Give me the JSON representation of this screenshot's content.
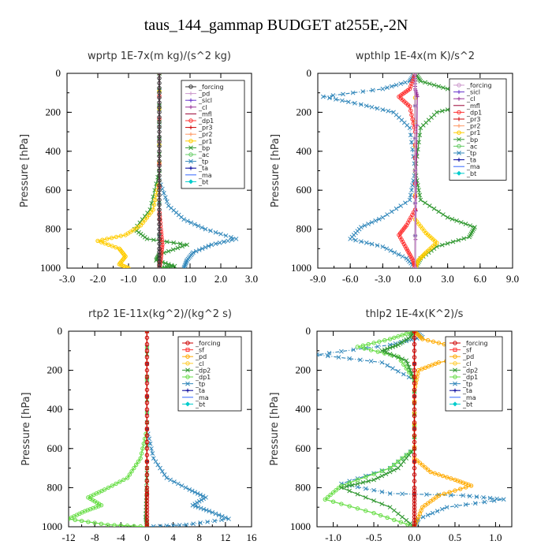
{
  "figure_title": "taus_144_gammap  BUDGET at255E,-2N",
  "chart_data": [
    {
      "type": "line",
      "title": "wprtp  1E-7x(m kg)/(s^2 kg)",
      "ylabel": "Pressure [hPa]",
      "xlim": [
        -3,
        3
      ],
      "ylim": [
        1000,
        0
      ],
      "xticks": [
        "-3.0",
        "-2.0",
        "-1.0",
        "0.0",
        "1.0",
        "2.0",
        "3.0"
      ],
      "yticks": [
        "0",
        "200",
        "400",
        "600",
        "800",
        "1000"
      ],
      "legend_position": "top-right",
      "series": [
        {
          "name": "_forcing",
          "color": "#333333",
          "marker": "o",
          "x": [
            0,
            0,
            0,
            0,
            0,
            0,
            0,
            0
          ],
          "y": [
            0,
            150,
            300,
            450,
            600,
            750,
            900,
            1000
          ]
        },
        {
          "name": "_pd",
          "color": "#cc99cc",
          "marker": "+",
          "x": [
            0,
            0
          ],
          "y": [
            0,
            1000
          ]
        },
        {
          "name": "_sicl",
          "color": "#6633cc",
          "marker": "+",
          "x": [
            0,
            0
          ],
          "y": [
            0,
            1000
          ]
        },
        {
          "name": "_cl",
          "color": "#993399",
          "marker": "+",
          "x": [
            0,
            0
          ],
          "y": [
            0,
            1000
          ]
        },
        {
          "name": "_mfl",
          "color": "#990033",
          "marker": "-",
          "x": [
            0,
            0
          ],
          "y": [
            0,
            1000
          ]
        },
        {
          "name": "_dp1",
          "color": "#ff3333",
          "marker": "o",
          "x": [
            0,
            0,
            0.05,
            0.1,
            0.05,
            0
          ],
          "y": [
            0,
            700,
            800,
            880,
            950,
            1000
          ]
        },
        {
          "name": "_pr3",
          "color": "#cc0000",
          "marker": "+",
          "x": [
            0,
            0
          ],
          "y": [
            0,
            1000
          ]
        },
        {
          "name": "_pr2",
          "color": "#ff9966",
          "marker": "+",
          "x": [
            0,
            0
          ],
          "y": [
            0,
            1000
          ]
        },
        {
          "name": "_pr1",
          "color": "#ffcc00",
          "marker": "o",
          "x": [
            0,
            0,
            -0.2,
            -0.6,
            -1.1,
            -2.0,
            -1.3,
            -1.1,
            -1.3,
            -1.0
          ],
          "y": [
            0,
            550,
            700,
            780,
            830,
            860,
            900,
            940,
            980,
            1000
          ]
        },
        {
          "name": "_bp",
          "color": "#339933",
          "marker": "x",
          "x": [
            0,
            0,
            -0.3,
            -0.8,
            -0.4,
            0.9,
            0.0,
            -0.1,
            0.5,
            0.0
          ],
          "y": [
            0,
            500,
            700,
            800,
            850,
            880,
            930,
            960,
            990,
            1000
          ]
        },
        {
          "name": "_ac",
          "color": "#66cc66",
          "marker": "o",
          "x": [
            0,
            0
          ],
          "y": [
            0,
            1000
          ]
        },
        {
          "name": "_tp",
          "color": "#3388bb",
          "marker": "x",
          "x": [
            0,
            0,
            0.3,
            0.8,
            1.5,
            2.5,
            1.7,
            1.1,
            0.9,
            0.8
          ],
          "y": [
            0,
            550,
            680,
            750,
            800,
            850,
            880,
            920,
            960,
            1000
          ]
        },
        {
          "name": "_ta",
          "color": "#000099",
          "marker": "+",
          "x": [
            0,
            0
          ],
          "y": [
            0,
            1000
          ]
        },
        {
          "name": "_ma",
          "color": "#3366ff",
          "marker": "-",
          "x": [
            0,
            0
          ],
          "y": [
            0,
            1000
          ]
        },
        {
          "name": "_bt",
          "color": "#00cccc",
          "marker": "diamond",
          "x": [
            0,
            0
          ],
          "y": [
            0,
            1000
          ]
        }
      ]
    },
    {
      "type": "line",
      "title": "wpthlp  1E-4x(m K)/s^2",
      "ylabel": "Pressure [hPa]",
      "xlim": [
        -9,
        9
      ],
      "ylim": [
        1000,
        0
      ],
      "xticks": [
        "-9.0",
        "-6.0",
        "-3.0",
        "0.0",
        "3.0",
        "6.0",
        "9.0"
      ],
      "yticks": [
        "0",
        "200",
        "400",
        "600",
        "800",
        "1000"
      ],
      "legend_position": "top-right",
      "series": [
        {
          "name": "_forcing",
          "color": "#cc99cc",
          "marker": "o",
          "x": [
            0,
            0
          ],
          "y": [
            0,
            1000
          ]
        },
        {
          "name": "_sicl",
          "color": "#6633cc",
          "marker": "+",
          "x": [
            0,
            0
          ],
          "y": [
            0,
            1000
          ]
        },
        {
          "name": "_cl",
          "color": "#993399",
          "marker": "+",
          "x": [
            0,
            0,
            0.2,
            0
          ],
          "y": [
            0,
            80,
            120,
            1000
          ]
        },
        {
          "name": "_mfl",
          "color": "#990033",
          "marker": "-",
          "x": [
            0,
            0
          ],
          "y": [
            0,
            1000
          ]
        },
        {
          "name": "_dp1",
          "color": "#ff3333",
          "marker": "o",
          "x": [
            0,
            -0.5,
            -1.5,
            -0.5,
            0,
            0,
            -0.8,
            -1.5,
            -0.8,
            -0.2,
            0
          ],
          "y": [
            0,
            80,
            120,
            170,
            300,
            700,
            780,
            830,
            900,
            960,
            1000
          ]
        },
        {
          "name": "_pr3",
          "color": "#cc0000",
          "marker": "+",
          "x": [
            0,
            0
          ],
          "y": [
            0,
            1000
          ]
        },
        {
          "name": "_pr2",
          "color": "#ff9966",
          "marker": "+",
          "x": [
            0,
            0
          ],
          "y": [
            0,
            1000
          ]
        },
        {
          "name": "_pr1",
          "color": "#ffcc00",
          "marker": "o",
          "x": [
            0,
            0,
            1.0,
            2.0,
            1.0,
            0.3,
            0
          ],
          "y": [
            0,
            750,
            820,
            870,
            920,
            960,
            1000
          ]
        },
        {
          "name": "_bp",
          "color": "#339933",
          "marker": "x",
          "x": [
            0,
            0.5,
            3.0,
            8.0,
            5.0,
            2.0,
            0.5,
            0,
            0.5,
            3.0,
            5.5,
            5.0,
            2.0,
            0.5,
            0
          ],
          "y": [
            0,
            40,
            80,
            120,
            160,
            200,
            280,
            500,
            650,
            740,
            790,
            840,
            890,
            950,
            1000
          ]
        },
        {
          "name": "_ac",
          "color": "#66cc66",
          "marker": "o",
          "x": [
            0,
            0
          ],
          "y": [
            0,
            1000
          ]
        },
        {
          "name": "_tp",
          "color": "#3388bb",
          "marker": "x",
          "x": [
            0,
            -0.5,
            -3.0,
            -8.5,
            -5.0,
            -2.0,
            -0.5,
            0,
            -0.5,
            -3.0,
            -5.0,
            -6.0,
            -3.0,
            -0.8,
            0
          ],
          "y": [
            0,
            40,
            80,
            120,
            160,
            200,
            280,
            500,
            650,
            740,
            790,
            850,
            890,
            950,
            1000
          ]
        },
        {
          "name": "_ta",
          "color": "#000099",
          "marker": "+",
          "x": [
            0,
            0
          ],
          "y": [
            0,
            1000
          ]
        },
        {
          "name": "_ma",
          "color": "#3366ff",
          "marker": "-",
          "x": [
            0,
            0
          ],
          "y": [
            0,
            1000
          ]
        },
        {
          "name": "_bt",
          "color": "#00cccc",
          "marker": "diamond",
          "x": [
            0,
            0
          ],
          "y": [
            0,
            1000
          ]
        }
      ]
    },
    {
      "type": "line",
      "title": "rtp2  1E-11x(kg^2)/(kg^2 s)",
      "ylabel": "Pressure [hPa]",
      "xlim": [
        -12,
        16
      ],
      "ylim": [
        1000,
        0
      ],
      "xticks": [
        "-12",
        "-8",
        "-4",
        "0",
        "4",
        "8",
        "12",
        "16"
      ],
      "yticks": [
        "0",
        "200",
        "400",
        "600",
        "800",
        "1000"
      ],
      "legend_position": "top-right",
      "series": [
        {
          "name": "_forcing",
          "color": "#cc0000",
          "marker": "o",
          "x": [
            0,
            0,
            0,
            0,
            0,
            0,
            0
          ],
          "y": [
            0,
            200,
            400,
            600,
            800,
            900,
            1000
          ]
        },
        {
          "name": "_sf",
          "color": "#ff3333",
          "marker": "square",
          "x": [
            0,
            0
          ],
          "y": [
            0,
            1000
          ]
        },
        {
          "name": "_pd",
          "color": "#ffaa00",
          "marker": "o",
          "x": [
            0,
            0
          ],
          "y": [
            0,
            1000
          ]
        },
        {
          "name": "_cl",
          "color": "#ffcc33",
          "marker": "o",
          "x": [
            0,
            0
          ],
          "y": [
            0,
            1000
          ]
        },
        {
          "name": "_dp2",
          "color": "#339933",
          "marker": "x",
          "x": [
            0,
            0,
            -0.1,
            -0.2,
            0
          ],
          "y": [
            0,
            700,
            850,
            950,
            1000
          ]
        },
        {
          "name": "_dp1",
          "color": "#66dd44",
          "marker": "o",
          "x": [
            0,
            0,
            -1.0,
            -3.0,
            -6.5,
            -9.0,
            -7.0,
            -9.5,
            -12.0,
            -6.0,
            0
          ],
          "y": [
            0,
            500,
            650,
            750,
            810,
            850,
            890,
            920,
            960,
            990,
            1000
          ]
        },
        {
          "name": "_tp",
          "color": "#3388bb",
          "marker": "x",
          "x": [
            0,
            0,
            1.0,
            3.0,
            6.5,
            9.0,
            7.0,
            9.5,
            12.5,
            6.0,
            0
          ],
          "y": [
            0,
            500,
            650,
            750,
            810,
            850,
            890,
            920,
            960,
            990,
            1000
          ]
        },
        {
          "name": "_ta",
          "color": "#000099",
          "marker": "+",
          "x": [
            0,
            0
          ],
          "y": [
            0,
            1000
          ]
        },
        {
          "name": "_ma",
          "color": "#3366ff",
          "marker": "-",
          "x": [
            0,
            0
          ],
          "y": [
            0,
            1000
          ]
        },
        {
          "name": "_bt",
          "color": "#00cccc",
          "marker": "diamond",
          "x": [
            0,
            0
          ],
          "y": [
            0,
            1000
          ]
        }
      ]
    },
    {
      "type": "line",
      "title": "thlp2  1E-4x(K^2)/s",
      "ylabel": "Pressure [hPa]",
      "xlim": [
        -1.2,
        1.2
      ],
      "ylim": [
        1000,
        0
      ],
      "xticks": [
        "-1.0",
        "-0.5",
        "0.0",
        "0.5",
        "1.0"
      ],
      "yticks": [
        "0",
        "200",
        "400",
        "600",
        "800",
        "1000"
      ],
      "legend_position": "top-right",
      "series": [
        {
          "name": "_forcing",
          "color": "#cc0000",
          "marker": "o",
          "x": [
            0,
            0,
            0,
            0,
            0,
            0,
            0
          ],
          "y": [
            0,
            200,
            400,
            600,
            800,
            900,
            1000
          ]
        },
        {
          "name": "_sf",
          "color": "#ff3333",
          "marker": "square",
          "x": [
            0,
            0
          ],
          "y": [
            0,
            1000
          ]
        },
        {
          "name": "_pd",
          "color": "#ffaa00",
          "marker": "o",
          "x": [
            0,
            0.1,
            0.5,
            0.85,
            0.3,
            0.05,
            0,
            0,
            0.2,
            0.5,
            0.7,
            0.3,
            0.1,
            0
          ],
          "y": [
            0,
            40,
            80,
            120,
            160,
            200,
            300,
            650,
            720,
            760,
            790,
            840,
            900,
            1000
          ]
        },
        {
          "name": "_cl",
          "color": "#ffcc33",
          "marker": "o",
          "x": [
            0,
            0
          ],
          "y": [
            0,
            1000
          ]
        },
        {
          "name": "_dp2",
          "color": "#339933",
          "marker": "x",
          "x": [
            0,
            -0.05,
            -0.2,
            -0.4,
            -0.1,
            0,
            0,
            -0.2,
            -0.5,
            -0.9,
            -0.3,
            0
          ],
          "y": [
            0,
            30,
            70,
            100,
            150,
            250,
            600,
            700,
            760,
            800,
            900,
            1000
          ]
        },
        {
          "name": "_dp1",
          "color": "#66dd44",
          "marker": "o",
          "x": [
            0,
            -0.3,
            -0.7,
            -0.2,
            0,
            0,
            -0.3,
            -0.9,
            -1.1,
            -0.5,
            0
          ],
          "y": [
            0,
            40,
            80,
            130,
            250,
            600,
            700,
            790,
            860,
            930,
            1000
          ]
        },
        {
          "name": "_tp",
          "color": "#3388bb",
          "marker": "x",
          "x": [
            0,
            0.1,
            -0.3,
            -1.2,
            -0.4,
            0,
            0,
            -0.3,
            -0.9,
            -0.3,
            0.6,
            1.1,
            0.4,
            0.05,
            0
          ],
          "y": [
            0,
            30,
            70,
            120,
            160,
            250,
            600,
            700,
            780,
            830,
            840,
            860,
            900,
            960,
            1000
          ]
        },
        {
          "name": "_ta",
          "color": "#000099",
          "marker": "+",
          "x": [
            0,
            0
          ],
          "y": [
            0,
            1000
          ]
        },
        {
          "name": "_ma",
          "color": "#3366ff",
          "marker": "-",
          "x": [
            0,
            0
          ],
          "y": [
            0,
            1000
          ]
        },
        {
          "name": "_bt",
          "color": "#00cccc",
          "marker": "diamond",
          "x": [
            0,
            0
          ],
          "y": [
            0,
            1000
          ]
        }
      ]
    }
  ]
}
